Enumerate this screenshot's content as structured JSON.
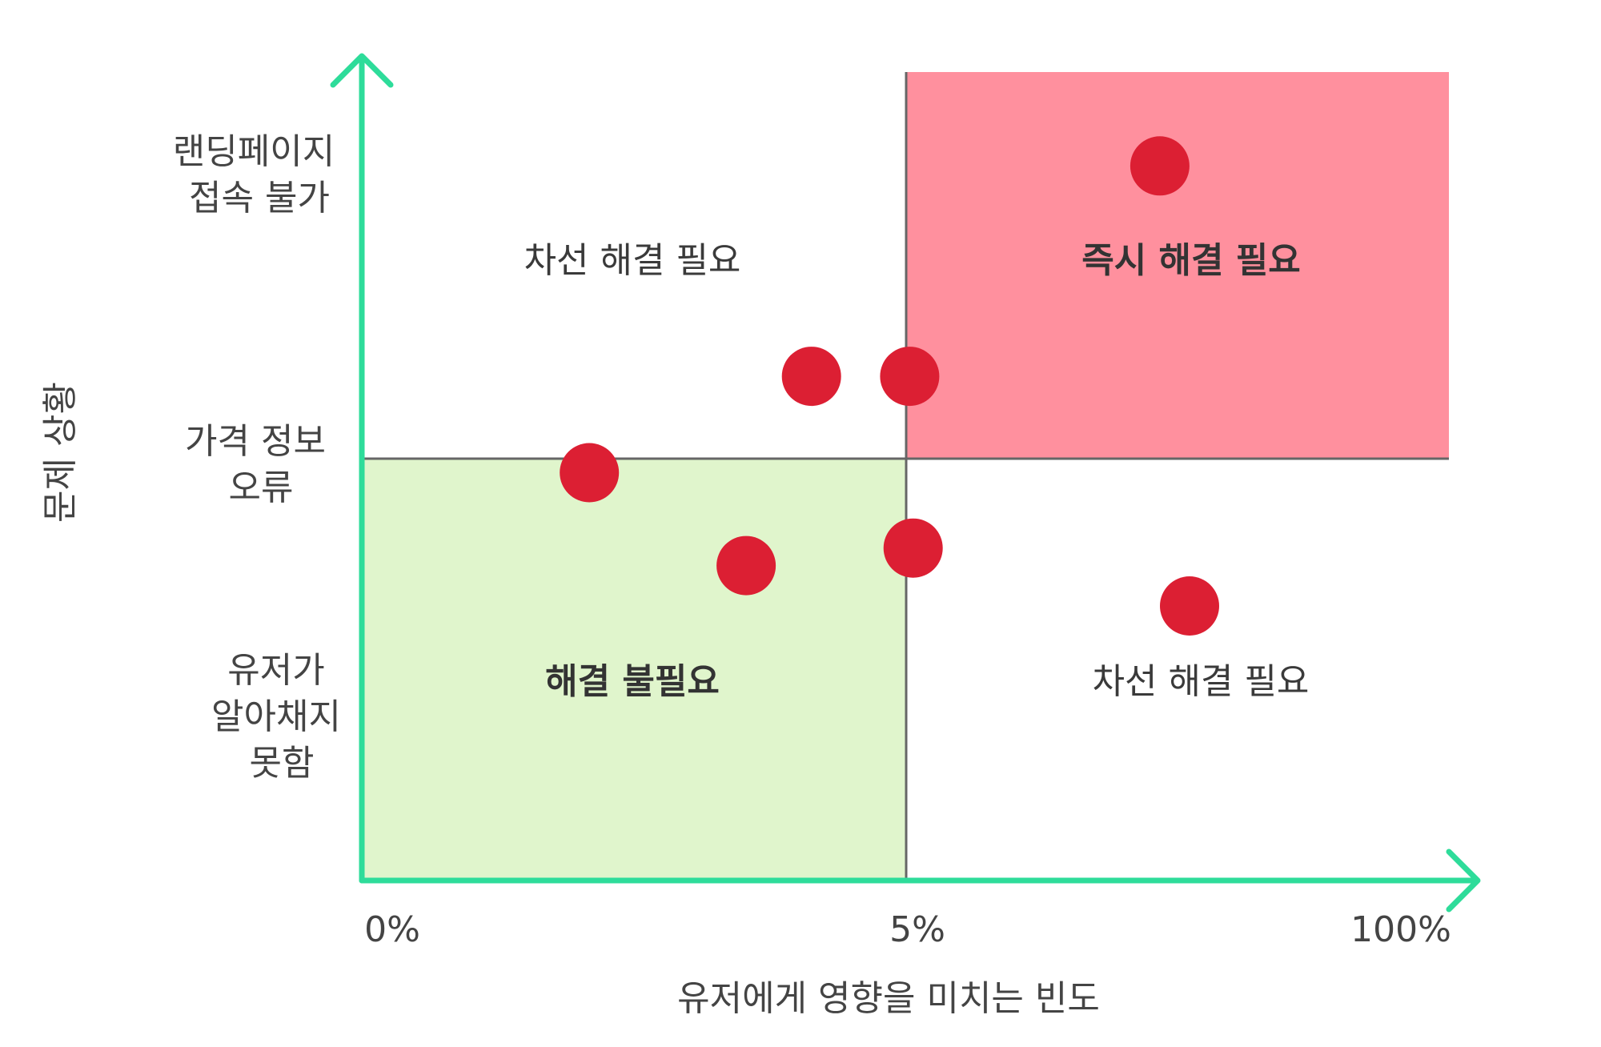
{
  "chart_data": {
    "type": "scatter",
    "title": "",
    "xlabel": "유저에게 영향을 미치는 빈도",
    "ylabel": "문제 상황",
    "x_ticks": [
      "0%",
      "5%",
      "100%"
    ],
    "y_categories": [
      {
        "lines": [
          "랜딩페이지",
          "접속 불가"
        ],
        "level": 2
      },
      {
        "lines": [
          "가격 정보",
          "오류"
        ],
        "level": 1
      },
      {
        "lines": [
          "유저가",
          "알아채지",
          "못함"
        ],
        "level": 0
      }
    ],
    "quadrants": [
      {
        "label": "차선 해결 필요",
        "position": "top-left",
        "fill": "#ffffff",
        "bold": false
      },
      {
        "label": "즉시 해결 필요",
        "position": "top-right",
        "fill": "#ff909e",
        "bold": true
      },
      {
        "label": "해결 불필요",
        "position": "bottom-left",
        "fill": "#e0f5cc",
        "bold": true
      },
      {
        "label": "차선 해결 필요",
        "position": "bottom-right",
        "fill": "#ffffff",
        "bold": false
      }
    ],
    "points": [
      {
        "x": 4.13,
        "y": 1.47
      },
      {
        "x": 2.09,
        "y": 0.92
      },
      {
        "x": 3.53,
        "y": 0.39
      },
      {
        "x": 5.62,
        "y": 1.47
      },
      {
        "x": 49.4,
        "y": 2.67
      },
      {
        "x": 6.22,
        "y": 0.49
      },
      {
        "x": 54.6,
        "y": 0.16
      }
    ],
    "grid": false,
    "legend": "none",
    "colors": {
      "axis": "#2edc9a",
      "divider": "#666666",
      "point": "#dc1f33",
      "danger_quadrant": "#ff909e",
      "safe_quadrant": "#e0f5cc"
    }
  }
}
